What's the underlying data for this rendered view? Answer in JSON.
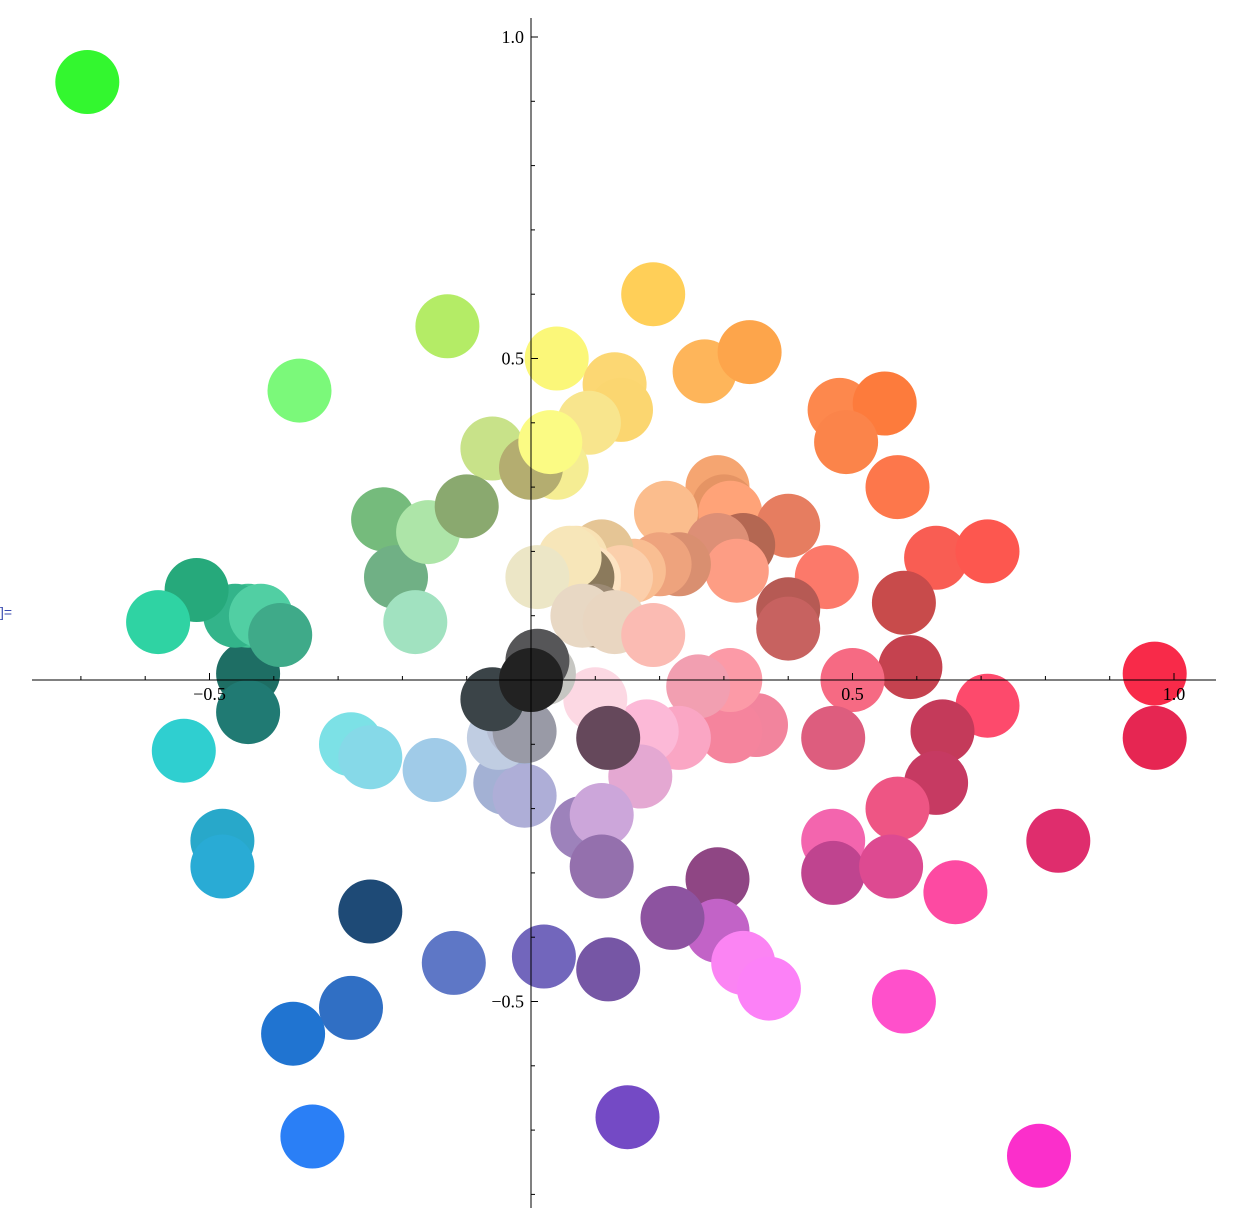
{
  "cell_marker": "]=",
  "chart_data": {
    "type": "scatter",
    "title": "",
    "xlabel": "",
    "ylabel": "",
    "xlim": [
      -0.78,
      1.07
    ],
    "ylim": [
      -0.82,
      1.02
    ],
    "grid": false,
    "x_ticks": [
      {
        "value": -0.5,
        "label": "−0.5"
      },
      {
        "value": 0.5,
        "label": "0.5"
      },
      {
        "value": 1.0,
        "label": "1.0"
      }
    ],
    "y_ticks": [
      {
        "value": 1.0,
        "label": "1.0"
      },
      {
        "value": 0.5,
        "label": "0.5"
      },
      {
        "value": -0.5,
        "label": "−0.5"
      }
    ],
    "points": [
      {
        "x": -0.69,
        "y": 0.93,
        "color": "#33f72f"
      },
      {
        "x": -0.36,
        "y": 0.45,
        "color": "#7bf97a"
      },
      {
        "x": -0.13,
        "y": 0.55,
        "color": "#b4ec66"
      },
      {
        "x": 0.04,
        "y": 0.5,
        "color": "#fbf779"
      },
      {
        "x": 0.19,
        "y": 0.6,
        "color": "#ffcf58"
      },
      {
        "x": 0.27,
        "y": 0.48,
        "color": "#feb55a"
      },
      {
        "x": 0.34,
        "y": 0.51,
        "color": "#fda54b"
      },
      {
        "x": 0.13,
        "y": 0.46,
        "color": "#fcd773"
      },
      {
        "x": 0.14,
        "y": 0.42,
        "color": "#fbd670"
      },
      {
        "x": 0.09,
        "y": 0.4,
        "color": "#f8e58d"
      },
      {
        "x": 0.02,
        "y": 0.34,
        "color": "#efe89b"
      },
      {
        "x": 0.04,
        "y": 0.33,
        "color": "#f5ed93"
      },
      {
        "x": -0.06,
        "y": 0.36,
        "color": "#c8e289"
      },
      {
        "x": 0.0,
        "y": 0.33,
        "color": "#b4ad70"
      },
      {
        "x": 0.03,
        "y": 0.37,
        "color": "#fbfb84"
      },
      {
        "x": 0.48,
        "y": 0.42,
        "color": "#fd884d"
      },
      {
        "x": 0.55,
        "y": 0.43,
        "color": "#fd7b3c"
      },
      {
        "x": 0.49,
        "y": 0.37,
        "color": "#fb844a"
      },
      {
        "x": 0.57,
        "y": 0.3,
        "color": "#fd774b"
      },
      {
        "x": 0.29,
        "y": 0.3,
        "color": "#f5a571"
      },
      {
        "x": 0.3,
        "y": 0.27,
        "color": "#e59464"
      },
      {
        "x": 0.31,
        "y": 0.26,
        "color": "#ffa378"
      },
      {
        "x": 0.21,
        "y": 0.26,
        "color": "#fbbd8d"
      },
      {
        "x": 0.4,
        "y": 0.24,
        "color": "#e67d60"
      },
      {
        "x": 0.33,
        "y": 0.21,
        "color": "#b46752"
      },
      {
        "x": 0.29,
        "y": 0.21,
        "color": "#dd8f76"
      },
      {
        "x": 0.32,
        "y": 0.17,
        "color": "#fd9d84"
      },
      {
        "x": 0.23,
        "y": 0.18,
        "color": "#d98f70"
      },
      {
        "x": 0.2,
        "y": 0.18,
        "color": "#eea37d"
      },
      {
        "x": 0.16,
        "y": 0.17,
        "color": "#f9be92"
      },
      {
        "x": 0.11,
        "y": 0.2,
        "color": "#e5c595"
      },
      {
        "x": 0.14,
        "y": 0.16,
        "color": "#fbcfab"
      },
      {
        "x": 0.09,
        "y": 0.15,
        "color": "#ffe1be"
      },
      {
        "x": 0.07,
        "y": 0.19,
        "color": "#f9e2b5"
      },
      {
        "x": 0.09,
        "y": 0.16,
        "color": "#fde4c3"
      },
      {
        "x": 0.08,
        "y": 0.16,
        "color": "#8b7a5c"
      },
      {
        "x": 0.06,
        "y": 0.19,
        "color": "#f7e6b9"
      },
      {
        "x": 0.01,
        "y": 0.16,
        "color": "#ece6c6"
      },
      {
        "x": 0.1,
        "y": 0.1,
        "color": "#9c8a74"
      },
      {
        "x": 0.08,
        "y": 0.1,
        "color": "#e8d8c4"
      },
      {
        "x": 0.13,
        "y": 0.09,
        "color": "#e9d6c1"
      },
      {
        "x": 0.19,
        "y": 0.07,
        "color": "#fbbbb3"
      },
      {
        "x": 0.46,
        "y": 0.16,
        "color": "#fc796a"
      },
      {
        "x": 0.63,
        "y": 0.19,
        "color": "#f95d53"
      },
      {
        "x": 0.71,
        "y": 0.2,
        "color": "#fd574f"
      },
      {
        "x": 0.58,
        "y": 0.12,
        "color": "#c84b4b"
      },
      {
        "x": 0.4,
        "y": 0.11,
        "color": "#b65a54"
      },
      {
        "x": 0.4,
        "y": 0.08,
        "color": "#c76260"
      },
      {
        "x": 0.59,
        "y": 0.02,
        "color": "#c5424f"
      },
      {
        "x": 0.5,
        "y": 0.0,
        "color": "#f66a83"
      },
      {
        "x": 0.97,
        "y": 0.01,
        "color": "#f82a49"
      },
      {
        "x": 0.97,
        "y": -0.09,
        "color": "#e62652"
      },
      {
        "x": 0.71,
        "y": -0.04,
        "color": "#fd4a6c"
      },
      {
        "x": 0.64,
        "y": -0.08,
        "color": "#c43a5a"
      },
      {
        "x": 0.63,
        "y": -0.16,
        "color": "#c63a62"
      },
      {
        "x": 0.57,
        "y": -0.2,
        "color": "#ee5584"
      },
      {
        "x": 0.82,
        "y": -0.25,
        "color": "#df2d6d"
      },
      {
        "x": 0.47,
        "y": -0.09,
        "color": "#dd5d7e"
      },
      {
        "x": 0.35,
        "y": -0.07,
        "color": "#f2849d"
      },
      {
        "x": 0.31,
        "y": -0.08,
        "color": "#f5849d"
      },
      {
        "x": 0.31,
        "y": 0.0,
        "color": "#fc9aa7"
      },
      {
        "x": 0.26,
        "y": -0.01,
        "color": "#f29fb1"
      },
      {
        "x": 0.23,
        "y": -0.09,
        "color": "#faa6c4"
      },
      {
        "x": 0.18,
        "y": -0.08,
        "color": "#fcb9d7"
      },
      {
        "x": 0.17,
        "y": -0.15,
        "color": "#e4a8d2"
      },
      {
        "x": 0.1,
        "y": -0.03,
        "color": "#fcd8e3"
      },
      {
        "x": 0.12,
        "y": -0.09,
        "color": "#65485b"
      },
      {
        "x": 0.47,
        "y": -0.25,
        "color": "#f365ae"
      },
      {
        "x": 0.47,
        "y": -0.3,
        "color": "#bf448f"
      },
      {
        "x": 0.56,
        "y": -0.29,
        "color": "#dd4a91"
      },
      {
        "x": 0.66,
        "y": -0.33,
        "color": "#fd4aa2"
      },
      {
        "x": 0.58,
        "y": -0.5,
        "color": "#ff50cb"
      },
      {
        "x": 0.79,
        "y": -0.74,
        "color": "#fb2fcb"
      },
      {
        "x": 0.29,
        "y": -0.31,
        "color": "#8f4684"
      },
      {
        "x": 0.29,
        "y": -0.39,
        "color": "#c263c7"
      },
      {
        "x": 0.33,
        "y": -0.44,
        "color": "#fb84f3"
      },
      {
        "x": 0.37,
        "y": -0.48,
        "color": "#fc81f7"
      },
      {
        "x": 0.22,
        "y": -0.37,
        "color": "#8d53a0"
      },
      {
        "x": 0.12,
        "y": -0.45,
        "color": "#7656a5"
      },
      {
        "x": 0.15,
        "y": -0.68,
        "color": "#744ac5"
      },
      {
        "x": 0.08,
        "y": -0.23,
        "color": "#9d82bb"
      },
      {
        "x": 0.11,
        "y": -0.21,
        "color": "#cca6da"
      },
      {
        "x": 0.11,
        "y": -0.29,
        "color": "#9470ad"
      },
      {
        "x": 0.02,
        "y": -0.43,
        "color": "#7266bc"
      },
      {
        "x": -0.12,
        "y": -0.44,
        "color": "#5e77c6"
      },
      {
        "x": -0.25,
        "y": -0.36,
        "color": "#1e4a76"
      },
      {
        "x": -0.28,
        "y": -0.51,
        "color": "#306fc4"
      },
      {
        "x": -0.37,
        "y": -0.55,
        "color": "#2074d1"
      },
      {
        "x": -0.34,
        "y": -0.71,
        "color": "#2a7ff6"
      },
      {
        "x": -0.48,
        "y": -0.25,
        "color": "#28a8ca"
      },
      {
        "x": -0.48,
        "y": -0.29,
        "color": "#29abd5"
      },
      {
        "x": -0.54,
        "y": -0.11,
        "color": "#2fcfd0"
      },
      {
        "x": -0.28,
        "y": -0.1,
        "color": "#7ce1e6"
      },
      {
        "x": -0.25,
        "y": -0.12,
        "color": "#86d9e8"
      },
      {
        "x": -0.15,
        "y": -0.14,
        "color": "#a0cbe8"
      },
      {
        "x": -0.04,
        "y": -0.16,
        "color": "#a3b1d4"
      },
      {
        "x": -0.01,
        "y": -0.18,
        "color": "#aeaed7"
      },
      {
        "x": -0.05,
        "y": -0.09,
        "color": "#c0cde2"
      },
      {
        "x": -0.02,
        "y": -0.07,
        "color": "#b6bdd2"
      },
      {
        "x": -0.01,
        "y": -0.08,
        "color": "#999aa6"
      },
      {
        "x": -0.06,
        "y": -0.03,
        "color": "#3b4448"
      },
      {
        "x": 0.02,
        "y": 0.01,
        "color": "#c6c6c2"
      },
      {
        "x": 0.01,
        "y": 0.03,
        "color": "#565658"
      },
      {
        "x": 0.0,
        "y": 0.0,
        "color": "#222222"
      },
      {
        "x": -0.44,
        "y": 0.01,
        "color": "#1e6e64"
      },
      {
        "x": -0.44,
        "y": -0.05,
        "color": "#207a73"
      },
      {
        "x": -0.44,
        "y": 0.1,
        "color": "#41c394"
      },
      {
        "x": -0.46,
        "y": 0.1,
        "color": "#33b48a"
      },
      {
        "x": -0.42,
        "y": 0.1,
        "color": "#51cfa3"
      },
      {
        "x": -0.39,
        "y": 0.07,
        "color": "#3faa89"
      },
      {
        "x": -0.52,
        "y": 0.14,
        "color": "#26a97b"
      },
      {
        "x": -0.58,
        "y": 0.09,
        "color": "#2fd3a3"
      },
      {
        "x": -0.23,
        "y": 0.25,
        "color": "#75bb7c"
      },
      {
        "x": -0.21,
        "y": 0.16,
        "color": "#70b085"
      },
      {
        "x": -0.18,
        "y": 0.09,
        "color": "#a1e2c0"
      },
      {
        "x": -0.16,
        "y": 0.23,
        "color": "#ade5a8"
      },
      {
        "x": -0.1,
        "y": 0.27,
        "color": "#8aa96f"
      }
    ]
  }
}
